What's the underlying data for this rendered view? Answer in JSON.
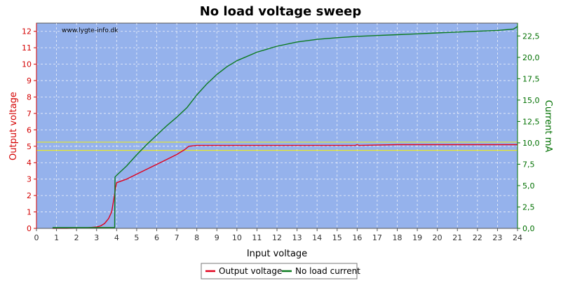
{
  "chart_data": {
    "type": "line",
    "title": "No load voltage sweep",
    "watermark": "www.lygte-info.dk",
    "xlabel": "Input voltage",
    "ylabel_left": "Output voltage",
    "ylabel_right": "Current mA",
    "xlim": [
      0,
      24
    ],
    "ylim_left": [
      0,
      12.5
    ],
    "ylim_right": [
      0,
      24
    ],
    "x_ticks": [
      0,
      1,
      2,
      3,
      4,
      5,
      6,
      7,
      8,
      9,
      10,
      11,
      12,
      13,
      14,
      15,
      16,
      17,
      18,
      19,
      20,
      21,
      22,
      23,
      24
    ],
    "y_left_ticks": [
      0,
      1,
      2,
      3,
      4,
      5,
      6,
      7,
      8,
      9,
      10,
      11,
      12
    ],
    "y_right_ticks": [
      "0,0",
      "2,5",
      "5,0",
      "7,5",
      "10,0",
      "12,5",
      "15,0",
      "17,5",
      "20,0",
      "22,5"
    ],
    "y_right_tick_values": [
      0,
      2.5,
      5,
      7.5,
      10,
      12.5,
      15,
      17.5,
      20,
      22.5
    ],
    "grid": true,
    "legend_position": "bottom",
    "reference_lines": [
      4.75,
      5.25
    ],
    "colors": {
      "plot_bg": "#95b2ec",
      "grid": "#ffffff",
      "output_voltage": "#e0001c",
      "current": "#0b7a1e",
      "reference": "#e8e829",
      "left_axis": "#d40000",
      "right_axis": "#007000"
    },
    "series": [
      {
        "name": "Output voltage",
        "axis": "left",
        "x": [
          0.8,
          1.5,
          2.0,
          2.5,
          3.0,
          3.2,
          3.4,
          3.6,
          3.75,
          3.85,
          3.95,
          4.0,
          4.5,
          5.0,
          5.5,
          6.0,
          6.5,
          7.0,
          7.4,
          7.6,
          8.0,
          10,
          12,
          14,
          15.9,
          16,
          16.1,
          18,
          20,
          22,
          24
        ],
        "y": [
          0.0,
          0.0,
          0.01,
          0.03,
          0.08,
          0.15,
          0.3,
          0.6,
          1.0,
          1.7,
          2.5,
          2.78,
          3.0,
          3.3,
          3.6,
          3.9,
          4.2,
          4.5,
          4.8,
          5.0,
          5.05,
          5.05,
          5.05,
          5.05,
          5.05,
          5.1,
          5.05,
          5.1,
          5.1,
          5.1,
          5.1
        ]
      },
      {
        "name": "No load current",
        "axis": "right",
        "x": [
          0.8,
          3.9,
          3.92,
          4.0,
          4.5,
          5.0,
          5.5,
          6.0,
          6.5,
          7.0,
          7.5,
          8.0,
          8.5,
          9.0,
          9.5,
          10,
          11,
          12,
          13,
          14,
          15,
          16,
          17,
          18,
          19,
          20,
          21,
          22,
          23,
          23.8,
          24
        ],
        "y": [
          0.1,
          0.1,
          6.0,
          6.2,
          7.3,
          8.6,
          9.8,
          10.9,
          12.0,
          13.0,
          14.1,
          15.6,
          16.9,
          18.0,
          18.9,
          19.6,
          20.6,
          21.3,
          21.8,
          22.1,
          22.3,
          22.45,
          22.55,
          22.65,
          22.75,
          22.85,
          22.95,
          23.05,
          23.15,
          23.3,
          23.6
        ]
      }
    ]
  }
}
